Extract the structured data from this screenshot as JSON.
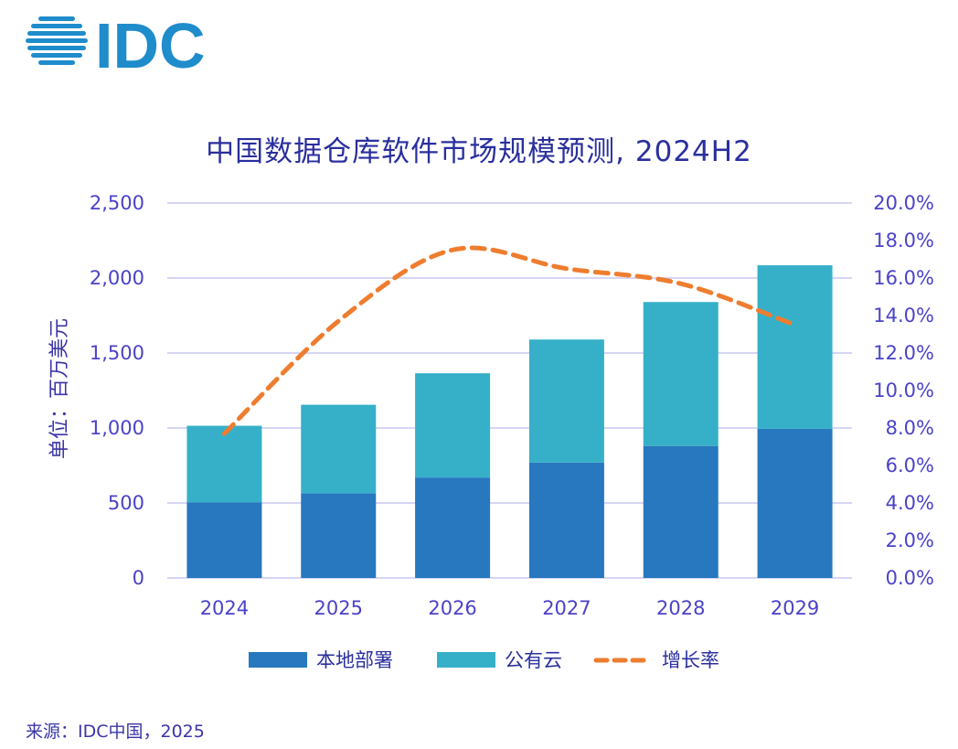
{
  "logo": {
    "text": "IDC"
  },
  "source": "来源：IDC中国，2025",
  "colors": {
    "onprem": "#2778be",
    "cloud": "#36b0c8",
    "growth": "#ee7d2f",
    "grid": "#c9c8f1",
    "axis_text": "#4a43c8"
  },
  "chart_data": {
    "type": "bar",
    "stacked": true,
    "title": "中国数据仓库软件市场规模预测, 2024H2",
    "ylabel": "单位：百万美元",
    "xlabel": "",
    "categories": [
      "2024",
      "2025",
      "2026",
      "2027",
      "2028",
      "2029"
    ],
    "ylim": [
      0,
      2500
    ],
    "yticks": [
      "0",
      "500",
      "1,000",
      "1,500",
      "2,000",
      "2,500"
    ],
    "y2lim": [
      0,
      20
    ],
    "y2ticks": [
      "0.0%",
      "2.0%",
      "4.0%",
      "6.0%",
      "8.0%",
      "10.0%",
      "12.0%",
      "14.0%",
      "16.0%",
      "18.0%",
      "20.0%"
    ],
    "series": [
      {
        "name": "本地部署",
        "type": "bar",
        "values": [
          505,
          565,
          670,
          770,
          880,
          995
        ]
      },
      {
        "name": "公有云",
        "type": "bar",
        "values": [
          510,
          590,
          695,
          820,
          960,
          1090
        ]
      },
      {
        "name": "增长率",
        "type": "line",
        "axis": "right",
        "style": "dashed",
        "values": [
          7.7,
          13.7,
          17.5,
          16.5,
          15.7,
          13.5
        ]
      }
    ],
    "grid": true,
    "legend": "bottom"
  }
}
